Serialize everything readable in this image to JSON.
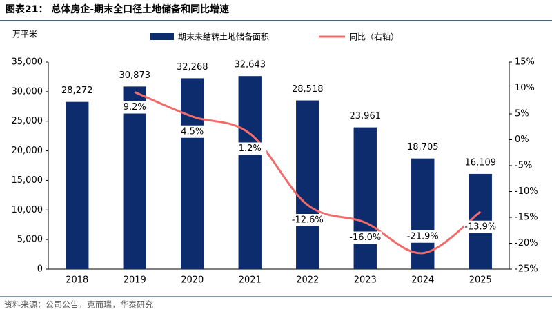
{
  "chart_data": {
    "type": "bar-line",
    "title": "图表21：  总体房企-期末全口径土地储备和同比增速",
    "y_label": "万平米",
    "source": "资料来源：公司公告，克而瑞，华泰研究",
    "categories": [
      "2018",
      "2019",
      "2020",
      "2021",
      "2022",
      "2023",
      "2024",
      "2025"
    ],
    "series": [
      {
        "name": "期末未结转土地储备面积",
        "type": "bar",
        "color": "#0d2c6e",
        "values": [
          28272,
          30873,
          32268,
          32643,
          28518,
          23961,
          18705,
          16109
        ],
        "value_labels": [
          "28,272",
          "30,873",
          "32,268",
          "32,643",
          "28,518",
          "23,961",
          "18,705",
          "16,109"
        ]
      },
      {
        "name": "同比（右轴）",
        "type": "line",
        "axis": "y2",
        "color": "#f26b6b",
        "values": [
          null,
          9.2,
          4.5,
          1.2,
          -12.6,
          -16.0,
          -21.9,
          -13.9
        ],
        "value_labels": [
          null,
          "9.2%",
          "4.5%",
          "1.2%",
          "-12.6%",
          "-16.0%",
          "-21.9%",
          "-13.9%"
        ]
      }
    ],
    "ylim": [
      0,
      35000
    ],
    "yticks": [
      {
        "value": 0,
        "label": "0"
      },
      {
        "value": 5000,
        "label": "5,000"
      },
      {
        "value": 10000,
        "label": "10,000"
      },
      {
        "value": 15000,
        "label": "15,000"
      },
      {
        "value": 20000,
        "label": "20,000"
      },
      {
        "value": 25000,
        "label": "25,000"
      },
      {
        "value": 30000,
        "label": "30,000"
      },
      {
        "value": 35000,
        "label": "35,000"
      }
    ],
    "y2lim": [
      -25,
      15
    ],
    "y2ticks": [
      {
        "value": -25,
        "label": "-25%"
      },
      {
        "value": -20,
        "label": "-20%"
      },
      {
        "value": -15,
        "label": "-15%"
      },
      {
        "value": -10,
        "label": "-10%"
      },
      {
        "value": -5,
        "label": "-5%"
      },
      {
        "value": 0,
        "label": "0%"
      },
      {
        "value": 5,
        "label": "5%"
      },
      {
        "value": 10,
        "label": "10%"
      },
      {
        "value": 15,
        "label": "15%"
      }
    ]
  }
}
